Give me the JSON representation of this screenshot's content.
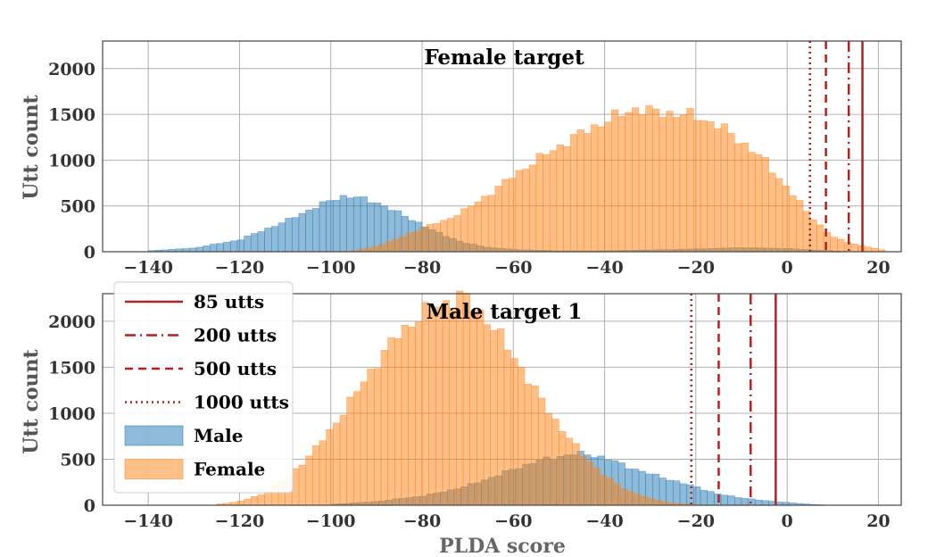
{
  "chart_data": [
    {
      "type": "bar",
      "title": "Female target",
      "xlabel": "",
      "ylabel": "Utt count",
      "xlim": [
        -150,
        25
      ],
      "ylim": [
        0,
        2300
      ],
      "x_ticks": [
        -140,
        -120,
        -100,
        -80,
        -60,
        -40,
        -20,
        0,
        20
      ],
      "y_ticks": [
        0,
        500,
        1000,
        1500,
        2000
      ],
      "grid": true,
      "bin_width": 1.5,
      "series": [
        {
          "name": "Male",
          "color": "#1f77b4",
          "x": [
            -140,
            -130,
            -120,
            -110,
            -105,
            -100,
            -97,
            -95,
            -90,
            -85,
            -80,
            -78,
            -75,
            -72,
            -70,
            -65,
            -60,
            -50,
            -40,
            -30,
            -20,
            -10,
            0,
            10,
            15
          ],
          "y": [
            10,
            40,
            130,
            330,
            450,
            560,
            610,
            600,
            540,
            420,
            300,
            240,
            180,
            120,
            90,
            45,
            25,
            10,
            10,
            20,
            30,
            45,
            35,
            10,
            0
          ]
        },
        {
          "name": "Female",
          "color": "#ff7f0e",
          "x": [
            -100,
            -95,
            -90,
            -85,
            -80,
            -77,
            -75,
            -70,
            -65,
            -60,
            -55,
            -50,
            -45,
            -40,
            -35,
            -33,
            -30,
            -25,
            -20,
            -15,
            -10,
            -5,
            0,
            5,
            8,
            10,
            15,
            20,
            22
          ],
          "y": [
            0,
            10,
            60,
            150,
            260,
            310,
            340,
            470,
            640,
            830,
            1000,
            1150,
            1300,
            1420,
            1530,
            1570,
            1530,
            1510,
            1480,
            1380,
            1200,
            1000,
            700,
            400,
            250,
            160,
            80,
            30,
            10
          ]
        }
      ],
      "thresholds": [
        {
          "name": "85 utts",
          "x": 16.5,
          "style": "solid"
        },
        {
          "name": "200 utts",
          "x": 13.5,
          "style": "dashdot"
        },
        {
          "name": "500 utts",
          "x": 8.5,
          "style": "dashed"
        },
        {
          "name": "1000 utts",
          "x": 5,
          "style": "dotted"
        }
      ]
    },
    {
      "type": "bar",
      "title": "Male target 1",
      "xlabel": "PLDA score",
      "ylabel": "Utt count",
      "xlim": [
        -150,
        25
      ],
      "ylim": [
        0,
        2300
      ],
      "x_ticks": [
        -140,
        -120,
        -100,
        -80,
        -60,
        -40,
        -20,
        0,
        20
      ],
      "y_ticks": [
        0,
        500,
        1000,
        1500,
        2000
      ],
      "grid": true,
      "bin_width": 1.5,
      "series": [
        {
          "name": "Male",
          "color": "#1f77b4",
          "x": [
            -100,
            -90,
            -80,
            -75,
            -70,
            -65,
            -60,
            -55,
            -50,
            -47,
            -45,
            -40,
            -35,
            -30,
            -25,
            -20,
            -15,
            -10,
            -5,
            0,
            5,
            10
          ],
          "y": [
            10,
            40,
            100,
            150,
            210,
            300,
            390,
            480,
            530,
            560,
            560,
            520,
            420,
            340,
            270,
            200,
            120,
            80,
            50,
            30,
            10,
            0
          ]
        },
        {
          "name": "Female",
          "color": "#ff7f0e",
          "x": [
            -125,
            -120,
            -115,
            -110,
            -105,
            -100,
            -95,
            -90,
            -85,
            -80,
            -75,
            -72,
            -70,
            -65,
            -60,
            -55,
            -50,
            -45,
            -40,
            -35,
            -30,
            -25,
            -20
          ],
          "y": [
            10,
            40,
            120,
            280,
            520,
            820,
            1180,
            1550,
            1870,
            2080,
            2200,
            2270,
            2230,
            1980,
            1630,
            1230,
            870,
            560,
            320,
            160,
            70,
            25,
            5
          ]
        }
      ],
      "thresholds": [
        {
          "name": "85 utts",
          "x": -2.5,
          "style": "solid"
        },
        {
          "name": "200 utts",
          "x": -8,
          "style": "dashdot"
        },
        {
          "name": "500 utts",
          "x": -15,
          "style": "dashed"
        },
        {
          "name": "1000 utts",
          "x": -21,
          "style": "dotted"
        }
      ]
    }
  ],
  "legend": {
    "placement": "bottom panel, upper-left",
    "items": [
      {
        "label": "85 utts",
        "kind": "line",
        "style": "solid",
        "color": "#b22222"
      },
      {
        "label": "200 utts",
        "kind": "line",
        "style": "dashdot",
        "color": "#b22222"
      },
      {
        "label": "500 utts",
        "kind": "line",
        "style": "dashed",
        "color": "#b22222"
      },
      {
        "label": "1000 utts",
        "kind": "line",
        "style": "dotted",
        "color": "#b22222"
      },
      {
        "label": "Male",
        "kind": "patch",
        "color": "#1f77b4"
      },
      {
        "label": "Female",
        "kind": "patch",
        "color": "#ff7f0e"
      }
    ]
  },
  "colors": {
    "threshold": "#b22222",
    "grid": "#b0b0b0",
    "axis": "#444444"
  }
}
